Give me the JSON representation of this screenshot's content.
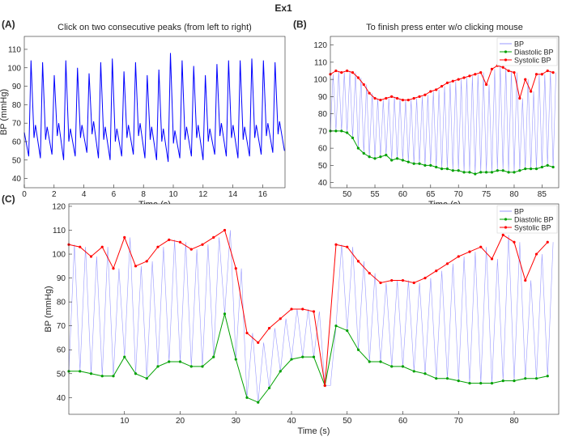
{
  "figure_title": "Ex1",
  "chart_data": [
    {
      "type": "line",
      "panel_label": "(A)",
      "title": "Click on two consecutive peaks (from left to right)",
      "x_label": "Time (s)",
      "y_label": "BP (mmHg)",
      "xlim": [
        0,
        17.5
      ],
      "ylim": [
        35,
        117
      ],
      "xticks": [
        0,
        2,
        4,
        6,
        8,
        10,
        12,
        14,
        16
      ],
      "yticks": [
        40,
        50,
        60,
        70,
        80,
        90,
        100,
        110
      ],
      "legend": false,
      "color": "#0000ff",
      "x": [
        0,
        0.3,
        0.45,
        0.65,
        0.75,
        1.08,
        1.23,
        1.43,
        1.53,
        1.86,
        2.01,
        2.21,
        2.31,
        2.64,
        2.79,
        2.99,
        3.09,
        3.42,
        3.57,
        3.77,
        3.87,
        4.2,
        4.35,
        4.55,
        4.65,
        4.98,
        5.13,
        5.33,
        5.43,
        5.76,
        5.91,
        6.11,
        6.21,
        6.54,
        6.69,
        6.89,
        6.99,
        7.32,
        7.47,
        7.67,
        7.77,
        8.1,
        8.25,
        8.45,
        8.55,
        8.88,
        9.03,
        9.23,
        9.33,
        9.66,
        9.81,
        10.01,
        10.11,
        10.44,
        10.59,
        10.79,
        10.89,
        11.22,
        11.37,
        11.57,
        11.67,
        12.0,
        12.15,
        12.35,
        12.45,
        12.78,
        12.93,
        13.13,
        13.23,
        13.56,
        13.71,
        13.91,
        14.01,
        14.34,
        14.49,
        14.69,
        14.79,
        15.12,
        15.27,
        15.47,
        15.57,
        15.9,
        16.05,
        16.25,
        16.35,
        16.68,
        16.83,
        17.03,
        17.13,
        17.46
      ],
      "values": [
        65,
        52,
        104,
        62,
        69,
        51,
        103,
        61,
        68,
        53,
        96,
        63,
        70,
        50,
        104,
        60,
        67,
        52,
        100,
        62,
        69,
        54,
        97,
        64,
        71,
        51,
        103,
        61,
        68,
        50,
        105,
        60,
        67,
        52,
        98,
        62,
        69,
        53,
        103,
        63,
        70,
        51,
        96,
        61,
        68,
        50,
        99,
        60,
        67,
        49,
        108,
        59,
        66,
        51,
        104,
        61,
        68,
        52,
        101,
        62,
        69,
        50,
        96,
        60,
        67,
        53,
        102,
        63,
        70,
        52,
        104,
        62,
        69,
        51,
        104,
        61,
        68,
        52,
        105,
        62,
        69,
        53,
        104,
        63,
        70,
        54,
        103,
        64,
        71,
        55
      ]
    },
    {
      "type": "line",
      "panel_label": "(B)",
      "title": "To finish press enter w/o clicking mouse",
      "x_label": "Time (s)",
      "xlim": [
        47,
        88
      ],
      "ylim": [
        37,
        125
      ],
      "xticks": [
        50,
        55,
        60,
        65,
        70,
        75,
        80,
        85
      ],
      "yticks": [
        40,
        50,
        60,
        70,
        80,
        90,
        100,
        110,
        120
      ],
      "legend": "upper right",
      "series": [
        {
          "name": "BP",
          "color": "#9a9aff",
          "markers": false,
          "x": [
            47,
            47.5,
            48,
            48.5,
            49,
            49.5,
            50,
            50.5,
            51,
            51.5,
            52,
            52.5,
            53,
            53.5,
            54,
            54.5,
            55,
            55.5,
            56,
            56.5,
            57,
            57.5,
            58,
            58.5,
            59,
            59.5,
            60,
            60.5,
            61,
            61.5,
            62,
            62.5,
            63,
            63.5,
            64,
            64.5,
            65,
            65.5,
            66,
            66.5,
            67,
            67.5,
            68,
            68.5,
            69,
            69.5,
            70,
            70.5,
            71,
            71.5,
            72,
            72.5,
            73,
            73.5,
            74,
            74.5,
            75,
            75.5,
            76,
            76.5,
            77,
            77.5,
            78,
            78.5,
            79,
            79.5,
            80,
            80.5,
            81,
            81.5,
            82,
            82.5,
            83,
            83.5,
            84,
            84.5,
            85,
            85.5,
            86,
            86.5,
            87,
            87.5
          ],
          "values": [
            70,
            103,
            70,
            105,
            70,
            104,
            69,
            105,
            66,
            104,
            60,
            101,
            57,
            97,
            55,
            92,
            54,
            89,
            55,
            88,
            56,
            89,
            53,
            90,
            54,
            89,
            53,
            88,
            52,
            88,
            51,
            89,
            51,
            90,
            50,
            91,
            50,
            93,
            49,
            94,
            48,
            96,
            48,
            98,
            47,
            99,
            47,
            100,
            46,
            101,
            46,
            102,
            45,
            103,
            46,
            104,
            46,
            97,
            46,
            106,
            47,
            108,
            47,
            107,
            46,
            105,
            46,
            104,
            47,
            89,
            48,
            100,
            48,
            93,
            48,
            103,
            49,
            103,
            50,
            105,
            49,
            104
          ]
        },
        {
          "name": "Diastolic BP",
          "color": "#00a000",
          "markers": true,
          "x": [
            47,
            48,
            49,
            50,
            51,
            52,
            53,
            54,
            55,
            56,
            57,
            58,
            59,
            60,
            61,
            62,
            63,
            64,
            65,
            66,
            67,
            68,
            69,
            70,
            71,
            72,
            73,
            74,
            75,
            76,
            77,
            78,
            79,
            80,
            81,
            82,
            83,
            84,
            85,
            86,
            87
          ],
          "values": [
            70,
            70,
            70,
            69,
            66,
            60,
            57,
            55,
            54,
            55,
            56,
            53,
            54,
            53,
            52,
            51,
            51,
            50,
            50,
            49,
            48,
            48,
            47,
            47,
            46,
            46,
            45,
            46,
            46,
            46,
            47,
            47,
            46,
            46,
            47,
            48,
            48,
            48,
            49,
            50,
            49
          ]
        },
        {
          "name": "Systolic BP",
          "color": "#ff0000",
          "markers": true,
          "x": [
            47,
            48,
            49,
            50,
            51,
            52,
            53,
            54,
            55,
            56,
            57,
            58,
            59,
            60,
            61,
            62,
            63,
            64,
            65,
            66,
            67,
            68,
            69,
            70,
            71,
            72,
            73,
            74,
            75,
            76,
            77,
            78,
            79,
            80,
            81,
            82,
            83,
            84,
            85,
            86,
            87
          ],
          "values": [
            103,
            105,
            104,
            105,
            104,
            101,
            97,
            92,
            89,
            88,
            89,
            90,
            89,
            88,
            88,
            89,
            90,
            91,
            93,
            94,
            96,
            98,
            99,
            100,
            101,
            102,
            103,
            104,
            97,
            106,
            108,
            107,
            105,
            104,
            89,
            100,
            93,
            103,
            103,
            105,
            104
          ]
        }
      ]
    },
    {
      "type": "line",
      "panel_label": "(C)",
      "x_label": "Time (s)",
      "y_label": "BP (mmHg)",
      "xlim": [
        0,
        88
      ],
      "ylim": [
        33,
        121
      ],
      "xticks": [
        10,
        20,
        30,
        40,
        50,
        60,
        70,
        80
      ],
      "yticks": [
        40,
        50,
        60,
        70,
        80,
        90,
        100,
        110,
        120
      ],
      "legend": "upper right",
      "series": [
        {
          "name": "BP",
          "color": "#9a9aff",
          "markers": false,
          "x": [
            0,
            1,
            2,
            3,
            4,
            5,
            6,
            7,
            8,
            9,
            10,
            11,
            12,
            13,
            14,
            15,
            16,
            17,
            18,
            19,
            20,
            21,
            22,
            23,
            24,
            25,
            26,
            27,
            28,
            29,
            30,
            31,
            32,
            33,
            34,
            35,
            36,
            37,
            38,
            39,
            40,
            41,
            42,
            43,
            44,
            45,
            46,
            47,
            48,
            49,
            50,
            51,
            52,
            53,
            54,
            55,
            56,
            57,
            58,
            59,
            60,
            61,
            62,
            63,
            64,
            65,
            66,
            67,
            68,
            69,
            70,
            71,
            72,
            73,
            74,
            75,
            76,
            77,
            78,
            79,
            80,
            81,
            82,
            83,
            84,
            85,
            86,
            87
          ],
          "values": [
            51,
            104,
            51,
            103,
            50,
            99,
            49,
            103,
            49,
            94,
            57,
            107,
            50,
            95,
            48,
            97,
            53,
            103,
            55,
            106,
            55,
            105,
            53,
            102,
            53,
            104,
            57,
            107,
            75,
            110,
            56,
            94,
            40,
            67,
            38,
            63,
            44,
            69,
            51,
            73,
            56,
            77,
            57,
            77,
            57,
            76,
            45,
            45,
            70,
            104,
            68,
            103,
            60,
            97,
            55,
            92,
            55,
            88,
            53,
            89,
            53,
            89,
            51,
            88,
            50,
            90,
            48,
            93,
            48,
            96,
            47,
            99,
            46,
            101,
            46,
            103,
            46,
            98,
            47,
            108,
            47,
            105,
            48,
            89,
            48,
            100,
            49,
            105
          ]
        },
        {
          "name": "Diastolic BP",
          "color": "#00a000",
          "markers": true,
          "x": [
            0,
            2,
            4,
            6,
            8,
            10,
            12,
            14,
            16,
            18,
            20,
            22,
            24,
            26,
            28,
            30,
            32,
            34,
            36,
            38,
            40,
            42,
            44,
            46,
            48,
            50,
            52,
            54,
            56,
            58,
            60,
            62,
            64,
            66,
            68,
            70,
            72,
            74,
            76,
            78,
            80,
            82,
            84,
            86
          ],
          "values": [
            51,
            51,
            50,
            49,
            49,
            57,
            50,
            48,
            53,
            55,
            55,
            53,
            53,
            57,
            75,
            56,
            40,
            38,
            44,
            51,
            56,
            57,
            57,
            45,
            70,
            68,
            60,
            55,
            55,
            53,
            53,
            51,
            50,
            48,
            48,
            47,
            46,
            46,
            46,
            47,
            47,
            48,
            48,
            49
          ]
        },
        {
          "name": "Systolic BP",
          "color": "#ff0000",
          "markers": true,
          "x": [
            0,
            2,
            4,
            6,
            8,
            10,
            12,
            14,
            16,
            18,
            20,
            22,
            24,
            26,
            28,
            30,
            32,
            34,
            36,
            38,
            40,
            42,
            44,
            46,
            48,
            50,
            52,
            54,
            56,
            58,
            60,
            62,
            64,
            66,
            68,
            70,
            72,
            74,
            76,
            78,
            80,
            82,
            84,
            86
          ],
          "values": [
            104,
            103,
            99,
            103,
            94,
            107,
            95,
            97,
            103,
            106,
            105,
            102,
            104,
            107,
            110,
            94,
            67,
            63,
            69,
            73,
            77,
            77,
            76,
            45,
            104,
            103,
            97,
            92,
            88,
            89,
            89,
            88,
            90,
            93,
            96,
            99,
            101,
            103,
            98,
            108,
            105,
            89,
            100,
            105
          ]
        }
      ]
    }
  ]
}
